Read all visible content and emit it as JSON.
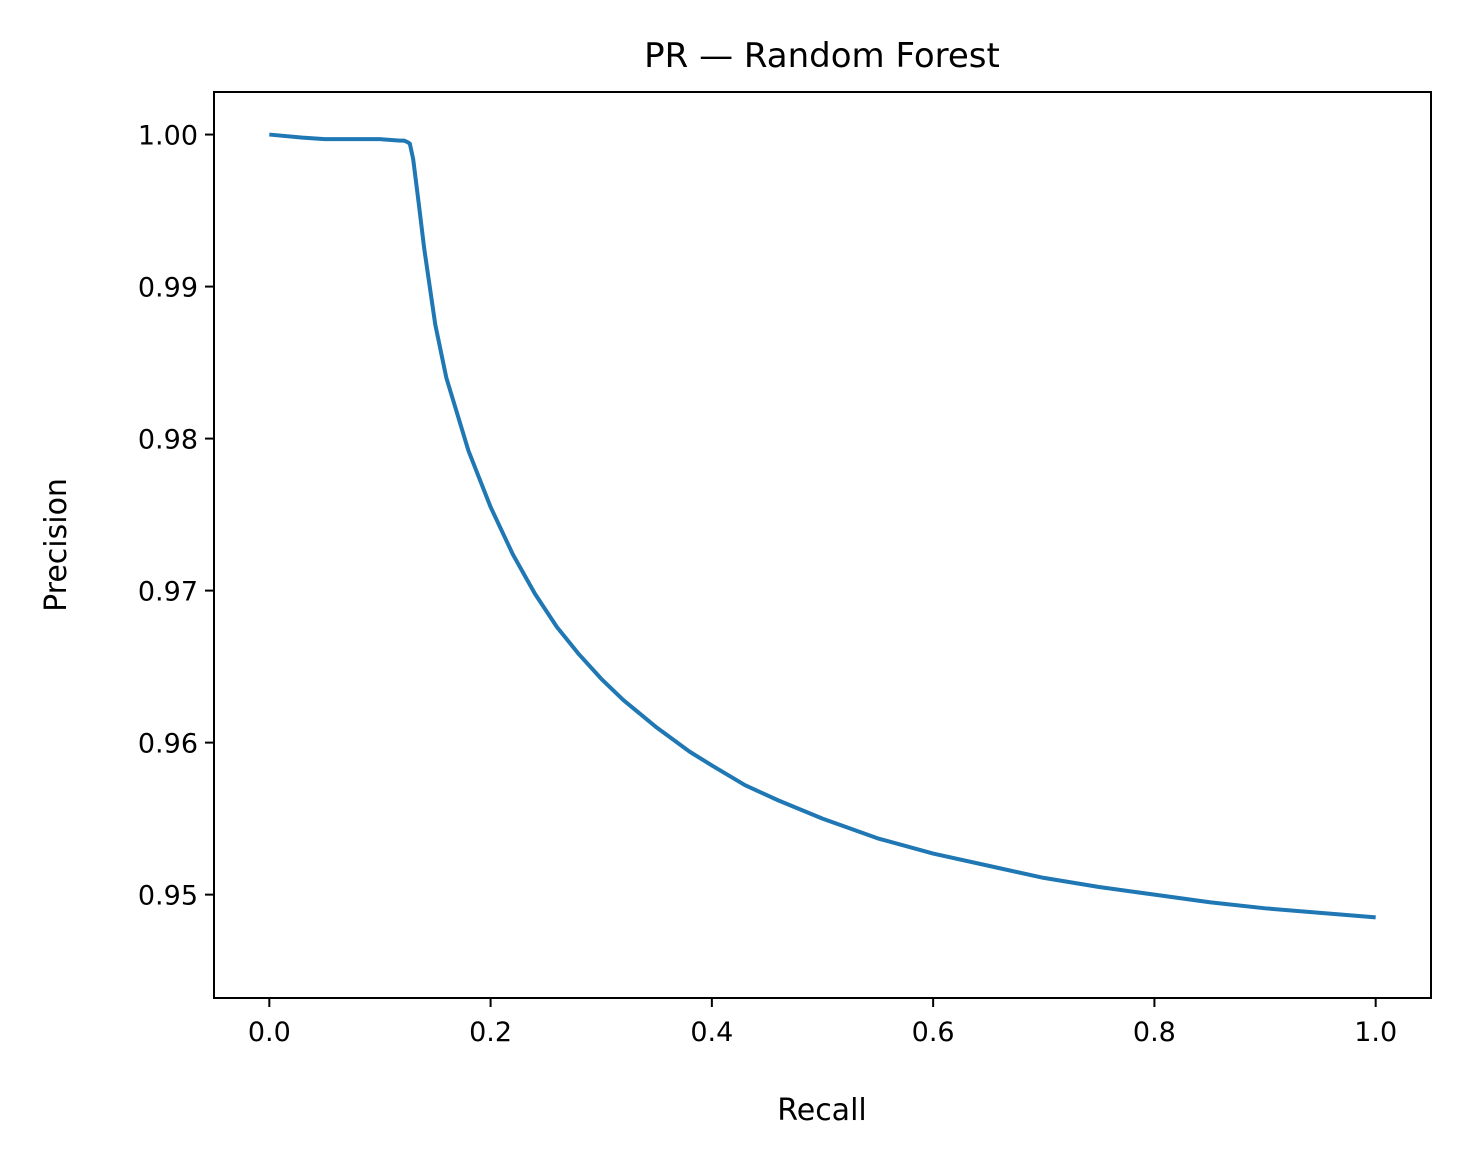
{
  "chart_data": {
    "type": "line",
    "title": "PR — Random Forest",
    "xlabel": "Recall",
    "ylabel": "Precision",
    "xlim": [
      -0.05,
      1.05
    ],
    "ylim": [
      0.9432,
      1.0028
    ],
    "xticks": [
      "0.0",
      "0.2",
      "0.4",
      "0.6",
      "0.8",
      "1.0"
    ],
    "yticks": [
      "0.95",
      "0.96",
      "0.97",
      "0.98",
      "0.99",
      "1.00"
    ],
    "grid": false,
    "legend": "none",
    "series": [
      {
        "color": "#1f77b4",
        "x": [
          0.0,
          0.03,
          0.05,
          0.1,
          0.118,
          0.122,
          0.125,
          0.127,
          0.13,
          0.135,
          0.14,
          0.15,
          0.16,
          0.18,
          0.2,
          0.22,
          0.24,
          0.26,
          0.28,
          0.3,
          0.32,
          0.35,
          0.38,
          0.4,
          0.43,
          0.46,
          0.5,
          0.55,
          0.6,
          0.65,
          0.7,
          0.75,
          0.8,
          0.85,
          0.9,
          0.95,
          1.0
        ],
        "y": [
          1.0,
          0.9998,
          0.9997,
          0.9997,
          0.9996,
          0.9996,
          0.9995,
          0.9994,
          0.9984,
          0.9955,
          0.9925,
          0.9875,
          0.984,
          0.9792,
          0.9755,
          0.9724,
          0.9698,
          0.9676,
          0.9658,
          0.9642,
          0.9628,
          0.961,
          0.9594,
          0.9585,
          0.9572,
          0.9562,
          0.955,
          0.9537,
          0.9527,
          0.9519,
          0.9511,
          0.9505,
          0.95,
          0.9495,
          0.9491,
          0.9488,
          0.9485
        ]
      }
    ]
  }
}
